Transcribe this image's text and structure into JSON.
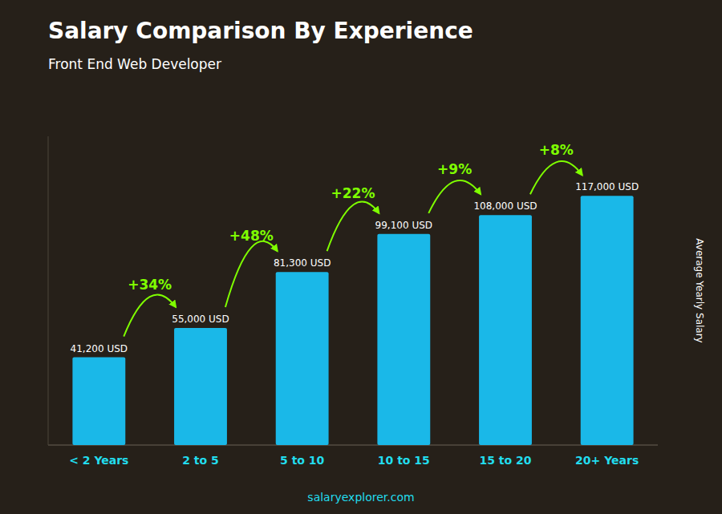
{
  "chart_data": {
    "type": "bar",
    "title": "Salary Comparison By Experience",
    "subtitle": "Front End Web Developer",
    "y_label": "Average Yearly Salary",
    "categories": [
      "< 2 Years",
      "2 to 5",
      "5 to 10",
      "10 to 15",
      "15 to 20",
      "20+ Years"
    ],
    "values": [
      41200,
      55000,
      81300,
      99100,
      108000,
      117000
    ],
    "value_labels": [
      "41,200 USD",
      "55,000 USD",
      "81,300 USD",
      "99,100 USD",
      "108,000 USD",
      "117,000 USD"
    ],
    "data_labels": true,
    "annotations": [
      "+34%",
      "+48%",
      "+22%",
      "+9%",
      "+8%"
    ],
    "source": "salaryexplorer.com",
    "color": "#1ab8e8",
    "ylim": [
      0,
      145000
    ],
    "tick_labels": "x",
    "grid": false
  }
}
